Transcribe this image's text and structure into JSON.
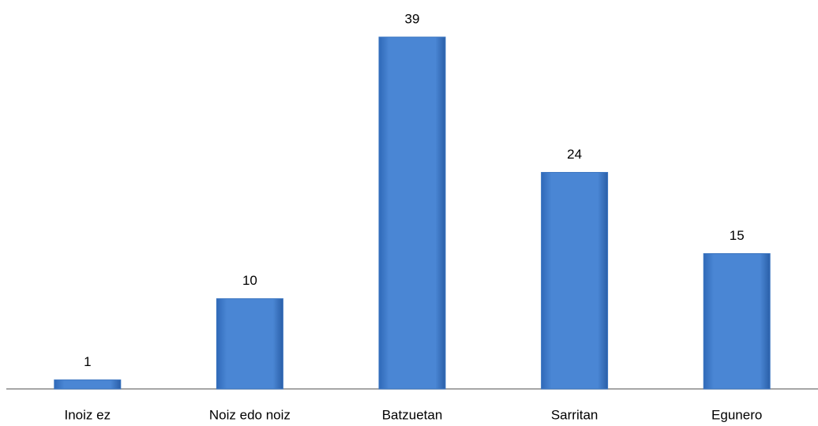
{
  "chart_data": {
    "type": "bar",
    "categories": [
      "Inoiz ez",
      "Noiz edo noiz",
      "Batzuetan",
      "Sarritan",
      "Egunero"
    ],
    "values": [
      1,
      10,
      39,
      24,
      15
    ],
    "color": "#4a86d4"
  }
}
